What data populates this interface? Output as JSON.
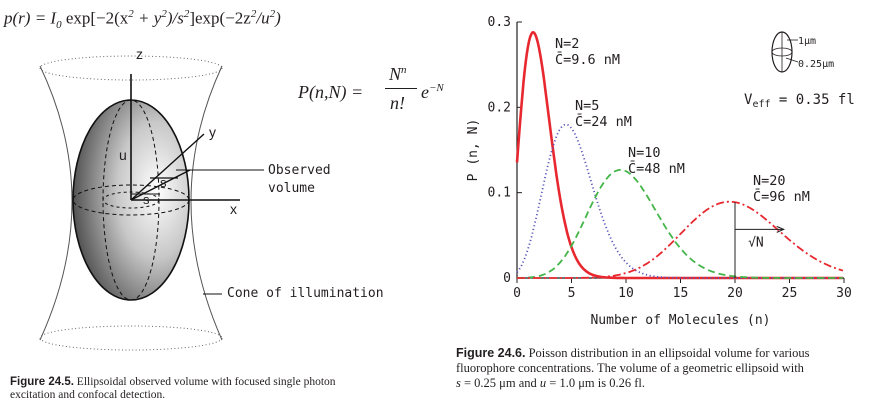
{
  "figure_left": {
    "formula_p": {
      "lhs": "p(r) = I",
      "sub0": "0",
      "exp_open": " exp[−2(x",
      "sup2a": "2",
      "plus": " + y",
      "sup2b": "2",
      "over_s": ")/s",
      "sup2c": "2",
      "exp2": "]exp(−2z",
      "sup2d": "2",
      "over_u": "/u",
      "sup2e": "2",
      "close": ")"
    },
    "formula_P": {
      "lhs": "P(n,N) =",
      "numerator": "N",
      "num_sup": "n",
      "denominator": "n!",
      "e": "e",
      "e_sup": "−N"
    },
    "labels": {
      "z": "z",
      "y": "y",
      "x": "x",
      "u": "u",
      "s_top": "s",
      "s_bottom": "s",
      "observed_1": "Observed",
      "observed_2": "volume",
      "cone": "Cone of illumination"
    },
    "caption": {
      "label": "Figure 24.5.",
      "text_1": " Ellipsoidal observed volume with focused single photon",
      "text_2": "excitation and confocal detection."
    }
  },
  "figure_right": {
    "caption": {
      "label": "Figure 24.6.",
      "text_1": " Poisson distribution in an ellipsoidal volume for various",
      "text_2": "fluorophore concentrations. The volume of a geometric ellipsoid with",
      "text_3a": "s",
      "text_3b": " = 0.25 μm and ",
      "text_3c": "u",
      "text_3d": " = 1.0 μm is 0.26 fl."
    },
    "inset": {
      "len_u": "1μm",
      "len_s": "0.25μm",
      "veff": "V",
      "veff_sub": "eff",
      "veff_val": " = 0.35 fl"
    },
    "sqrtN": "√N"
  },
  "chart_data": {
    "type": "line",
    "xlabel": "Number of Molecules (n)",
    "ylabel": "P (n, N)",
    "xlim": [
      0,
      30
    ],
    "ylim": [
      0,
      0.3
    ],
    "x_ticks": [
      "0",
      "5",
      "10",
      "15",
      "20",
      "25",
      "30"
    ],
    "y_ticks": [
      "0",
      "0.1",
      "0.2",
      "0.3"
    ],
    "grid": false,
    "series": [
      {
        "name": "N=2",
        "conc": "C̄=9.6 nM",
        "N": 2,
        "color": "#e8282f",
        "dash": "solid"
      },
      {
        "name": "N=5",
        "conc": "C̄=24 nM",
        "N": 5,
        "color": "#5b57b8",
        "dash": "dotted"
      },
      {
        "name": "N=10",
        "conc": "C̄=48 nM",
        "N": 10,
        "color": "#43b549",
        "dash": "dashed"
      },
      {
        "name": "N=20",
        "conc": "C̄=96 nM",
        "N": 20,
        "color": "#e8282f",
        "dash": "dashdot"
      }
    ]
  }
}
